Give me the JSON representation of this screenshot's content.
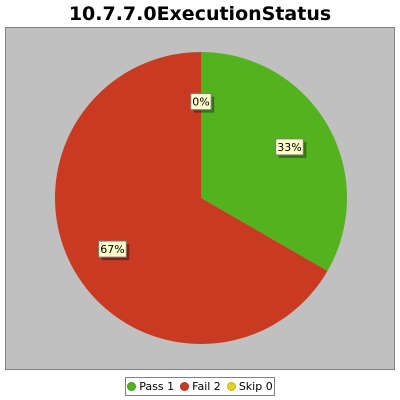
{
  "chart_data": {
    "type": "pie",
    "title": "10.7.7.0ExecutionStatus",
    "slices": [
      {
        "label": "Pass",
        "count": 1,
        "percent_label": "33%",
        "color": "#54b21e"
      },
      {
        "label": "Fail",
        "count": 2,
        "percent_label": "67%",
        "color": "#c93a22"
      },
      {
        "label": "Skip",
        "count": 0,
        "percent_label": "0%",
        "color": "#e4d21f"
      }
    ],
    "legend": [
      {
        "label": "Pass 1",
        "color": "#54b21e"
      },
      {
        "label": "Fail 2",
        "color": "#c93a22"
      },
      {
        "label": "Skip 0",
        "color": "#e4d21f"
      }
    ],
    "legend_position": "bottom"
  }
}
